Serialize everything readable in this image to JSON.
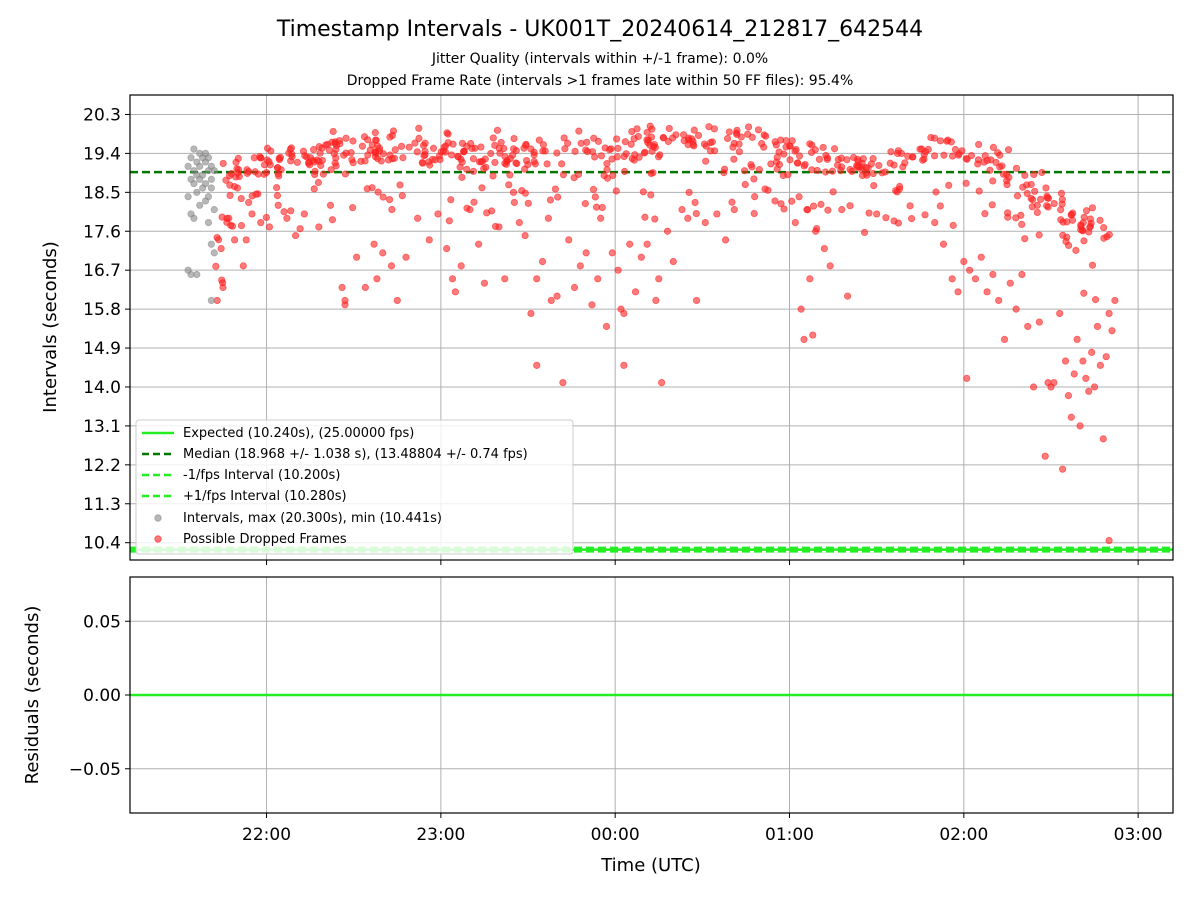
{
  "chart_data": [
    {
      "type": "scatter",
      "title": "Timestamp Intervals - UK001T_20240614_212817_642544",
      "subtitle_lines": [
        "Jitter Quality (intervals within +/-1 frame): 0.0%",
        "Dropped Frame Rate (intervals >1 frames late within 50 FF files): 95.4%"
      ],
      "xlabel": "",
      "ylabel": "Intervals (seconds)",
      "xlim": [
        "21:13",
        "03:12"
      ],
      "ylim": [
        10.0,
        20.75
      ],
      "yticks": [
        10.4,
        11.3,
        12.2,
        13.1,
        14.0,
        14.9,
        15.8,
        16.7,
        17.6,
        18.5,
        19.4,
        20.3
      ],
      "ytick_labels": [
        "10.4",
        "11.3",
        "12.2",
        "13.1",
        "14.0",
        "14.9",
        "15.8",
        "16.7",
        "17.6",
        "18.5",
        "19.4",
        "20.3"
      ],
      "grid": true,
      "legend_placement": "lower-left",
      "lines": [
        {
          "name": "Expected (10.240s), (25.00000 fps)",
          "y": 10.24,
          "style": "solid",
          "color": "#22ee22"
        },
        {
          "name": "Median (18.968 +/- 1.038 s), (13.48804 +/- 0.74 fps)",
          "y": 18.968,
          "style": "dashed",
          "color": "#007700"
        },
        {
          "name": "-1/fps Interval (10.200s)",
          "y": 10.2,
          "style": "dashed",
          "color": "#22ee22"
        },
        {
          "name": "+1/fps Interval (10.280s)",
          "y": 10.28,
          "style": "dashed",
          "color": "#22ee22"
        }
      ],
      "scatter_series": [
        {
          "name": "Intervals, max (20.300s), min (10.441s)",
          "color": "#888888",
          "x_range": [
            "21:33",
            "21:42"
          ],
          "points": [
            [
              "21:33",
              19.1
            ],
            [
              "21:34",
              19.3
            ],
            [
              "21:34",
              18.8
            ],
            [
              "21:35",
              19.0
            ],
            [
              "21:35",
              19.5
            ],
            [
              "21:36",
              18.9
            ],
            [
              "21:36",
              19.2
            ],
            [
              "21:37",
              19.4
            ],
            [
              "21:37",
              19.1
            ],
            [
              "21:38",
              19.3
            ],
            [
              "21:38",
              18.9
            ],
            [
              "21:39",
              19.2
            ],
            [
              "21:39",
              19.4
            ],
            [
              "21:40",
              19.0
            ],
            [
              "21:40",
              19.3
            ],
            [
              "21:41",
              18.8
            ],
            [
              "21:41",
              19.1
            ],
            [
              "21:42",
              19.0
            ],
            [
              "21:33",
              18.4
            ],
            [
              "21:34",
              18.0
            ],
            [
              "21:35",
              17.9
            ],
            [
              "21:36",
              18.5
            ],
            [
              "21:37",
              18.2
            ],
            [
              "21:38",
              18.6
            ],
            [
              "21:39",
              18.3
            ],
            [
              "21:40",
              17.8
            ],
            [
              "21:41",
              18.6
            ],
            [
              "21:42",
              18.1
            ],
            [
              "21:33",
              16.7
            ],
            [
              "21:34",
              16.6
            ],
            [
              "21:36",
              16.6
            ],
            [
              "21:41",
              17.3
            ],
            [
              "21:42",
              17.1
            ],
            [
              "21:41",
              16.0
            ],
            [
              "21:39",
              18.7
            ],
            [
              "21:35",
              18.7
            ],
            [
              "21:37",
              18.8
            ],
            [
              "21:40",
              18.4
            ]
          ]
        },
        {
          "name": "Possible Dropped Frames",
          "color": "#ff2222",
          "x_range": [
            "21:42",
            "02:51"
          ],
          "core_band": [
            [
              21.75,
              19.0
            ],
            [
              22.5,
              19.55
            ],
            [
              23.3,
              19.45
            ],
            [
              24.7,
              19.7
            ],
            [
              25.2,
              19.3
            ],
            [
              25.55,
              19.0
            ],
            [
              25.85,
              19.6
            ],
            [
              26.25,
              19.1
            ],
            [
              26.5,
              18.4
            ],
            [
              26.8,
              17.6
            ]
          ],
          "points": [
            [
              "21:43",
              16.0
            ],
            [
              "21:45",
              16.3
            ],
            [
              "21:47",
              17.9
            ],
            [
              "21:49",
              17.4
            ],
            [
              "21:50",
              18.6
            ],
            [
              "21:52",
              16.8
            ],
            [
              "21:53",
              17.4
            ],
            [
              "21:55",
              18.0
            ],
            [
              "21:58",
              17.8
            ],
            [
              "22:01",
              17.7
            ],
            [
              "22:04",
              18.2
            ],
            [
              "22:07",
              17.9
            ],
            [
              "22:10",
              17.5
            ],
            [
              "22:13",
              18.0
            ],
            [
              "22:18",
              17.7
            ],
            [
              "22:22",
              18.2
            ],
            [
              "22:26",
              16.3
            ],
            [
              "22:27",
              16.0
            ],
            [
              "22:27",
              15.9
            ],
            [
              "22:31",
              17.0
            ],
            [
              "22:34",
              16.3
            ],
            [
              "22:37",
              17.3
            ],
            [
              "22:38",
              16.5
            ],
            [
              "22:40",
              17.1
            ],
            [
              "22:43",
              16.8
            ],
            [
              "22:45",
              16.0
            ],
            [
              "22:48",
              17.0
            ],
            [
              "22:52",
              17.9
            ],
            [
              "22:56",
              17.4
            ],
            [
              "22:59",
              18.0
            ],
            [
              "23:02",
              17.2
            ],
            [
              "23:04",
              16.5
            ],
            [
              "23:05",
              16.2
            ],
            [
              "23:07",
              16.8
            ],
            [
              "23:10",
              18.1
            ],
            [
              "23:13",
              17.3
            ],
            [
              "23:15",
              16.4
            ],
            [
              "23:20",
              17.7
            ],
            [
              "23:22",
              16.5
            ],
            [
              "23:25",
              18.5
            ],
            [
              "23:27",
              17.8
            ],
            [
              "23:29",
              17.5
            ],
            [
              "23:31",
              15.7
            ],
            [
              "23:33",
              14.5
            ],
            [
              "23:33",
              16.5
            ],
            [
              "23:35",
              16.9
            ],
            [
              "23:37",
              17.9
            ],
            [
              "23:38",
              16.0
            ],
            [
              "23:40",
              16.1
            ],
            [
              "23:42",
              14.1
            ],
            [
              "23:44",
              17.4
            ],
            [
              "23:46",
              16.3
            ],
            [
              "23:48",
              16.8
            ],
            [
              "23:50",
              17.1
            ],
            [
              "23:52",
              15.9
            ],
            [
              "23:54",
              16.5
            ],
            [
              "23:55",
              17.9
            ],
            [
              "23:57",
              15.4
            ],
            [
              "23:59",
              17.1
            ],
            [
              "00:01",
              16.7
            ],
            [
              "00:02",
              15.8
            ],
            [
              "00:03",
              15.7
            ],
            [
              "00:03",
              14.5
            ],
            [
              "00:05",
              17.3
            ],
            [
              "00:07",
              16.2
            ],
            [
              "00:09",
              17.0
            ],
            [
              "00:11",
              17.3
            ],
            [
              "00:14",
              16.0
            ],
            [
              "00:15",
              16.5
            ],
            [
              "00:16",
              14.1
            ],
            [
              "00:18",
              17.6
            ],
            [
              "00:20",
              16.9
            ],
            [
              "00:23",
              18.1
            ],
            [
              "00:25",
              17.9
            ],
            [
              "00:28",
              16.0
            ],
            [
              "00:31",
              17.8
            ],
            [
              "00:35",
              18.0
            ],
            [
              "00:38",
              17.4
            ],
            [
              "00:41",
              18.1
            ],
            [
              "00:48",
              18.4
            ],
            [
              "00:55",
              18.3
            ],
            [
              "01:02",
              17.8
            ],
            [
              "01:04",
              15.8
            ],
            [
              "01:05",
              15.1
            ],
            [
              "01:06",
              18.1
            ],
            [
              "01:07",
              16.5
            ],
            [
              "01:08",
              15.2
            ],
            [
              "01:09",
              17.6
            ],
            [
              "01:12",
              17.2
            ],
            [
              "01:14",
              16.8
            ],
            [
              "01:18",
              18.1
            ],
            [
              "01:20",
              16.1
            ],
            [
              "01:30",
              18.0
            ],
            [
              "01:50",
              17.8
            ],
            [
              "01:53",
              17.3
            ],
            [
              "01:56",
              16.5
            ],
            [
              "01:58",
              16.2
            ],
            [
              "02:00",
              16.9
            ],
            [
              "02:01",
              14.2
            ],
            [
              "02:02",
              16.7
            ],
            [
              "02:04",
              16.5
            ],
            [
              "02:06",
              17.0
            ],
            [
              "02:08",
              16.2
            ],
            [
              "02:10",
              16.6
            ],
            [
              "02:12",
              16.0
            ],
            [
              "02:14",
              15.1
            ],
            [
              "02:16",
              16.4
            ],
            [
              "02:18",
              15.8
            ],
            [
              "02:20",
              16.6
            ],
            [
              "02:22",
              15.4
            ],
            [
              "02:24",
              14.0
            ],
            [
              "02:26",
              15.5
            ],
            [
              "02:28",
              12.4
            ],
            [
              "02:29",
              14.1
            ],
            [
              "02:30",
              14.0
            ],
            [
              "02:31",
              14.1
            ],
            [
              "02:33",
              15.7
            ],
            [
              "02:34",
              12.1
            ],
            [
              "02:35",
              14.6
            ],
            [
              "02:36",
              13.8
            ],
            [
              "02:37",
              13.3
            ],
            [
              "02:38",
              14.3
            ],
            [
              "02:39",
              15.1
            ],
            [
              "02:40",
              13.1
            ],
            [
              "02:41",
              14.6
            ],
            [
              "02:42",
              14.2
            ],
            [
              "02:43",
              13.9
            ],
            [
              "02:44",
              14.8
            ],
            [
              "02:45",
              14.0
            ],
            [
              "02:46",
              15.4
            ],
            [
              "02:47",
              14.5
            ],
            [
              "02:48",
              12.8
            ],
            [
              "02:49",
              14.7
            ],
            [
              "02:50",
              15.7
            ],
            [
              "02:50",
              10.45
            ],
            [
              "02:51",
              15.3
            ],
            [
              "02:52",
              16.0
            ]
          ]
        }
      ]
    },
    {
      "type": "line",
      "xlabel": "Time (UTC)",
      "ylabel": "Residuals (seconds)",
      "xlim": [
        "21:13",
        "03:12"
      ],
      "xticks": [
        "22:00",
        "23:00",
        "00:00",
        "01:00",
        "02:00",
        "03:00"
      ],
      "ylim": [
        -0.08,
        0.08
      ],
      "yticks": [
        0.05,
        0.0,
        -0.05
      ],
      "ytick_labels": [
        "0.05",
        "0.00",
        "−0.05"
      ],
      "grid": true,
      "series": [
        {
          "color": "#22ee22",
          "x": [
            "21:13",
            "03:12"
          ],
          "y": [
            0.0,
            0.0
          ]
        }
      ]
    }
  ]
}
